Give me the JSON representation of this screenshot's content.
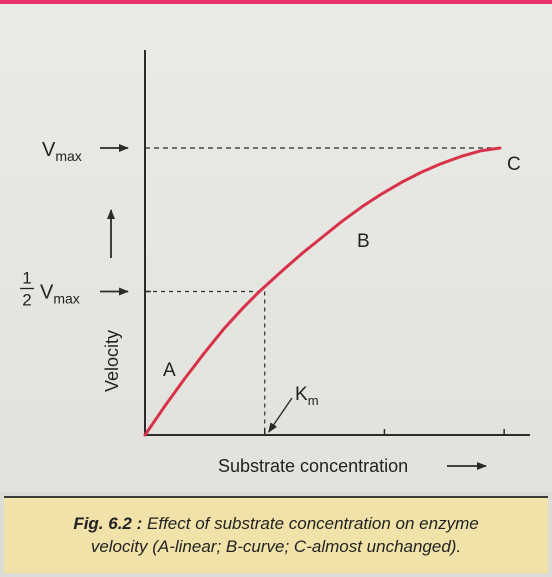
{
  "colors": {
    "curve": "#d8324a",
    "axis": "#2b2b2b",
    "caption_bg": "#f0e2a8",
    "accent_rule": "#e8306a"
  },
  "chart_data": {
    "type": "line",
    "title": "",
    "xlabel": "Substrate concentration",
    "ylabel": "Velocity",
    "y_markers": [
      {
        "label_main": "V",
        "label_sub": "max",
        "value": 1.0
      },
      {
        "label_frac_num": "1",
        "label_frac_den": "2",
        "label_main": "V",
        "label_sub": "max",
        "value": 0.5
      }
    ],
    "km_label": {
      "main": "K",
      "sub": "m"
    },
    "km_x": 1.16,
    "xlim": [
      0,
      3.6
    ],
    "ylim": [
      0,
      1.2
    ],
    "x_ticks": [
      1.16,
      2.32,
      3.48
    ],
    "y_ticks": [
      0.5
    ],
    "series": [
      {
        "values_x": [
          0,
          0.2,
          0.4,
          0.6,
          0.8,
          1.0,
          1.16,
          1.4,
          1.6,
          1.8,
          2.0,
          2.2,
          2.4,
          2.6,
          2.8,
          3.0,
          3.2,
          3.4,
          3.6
        ],
        "values_y": [
          0,
          0.1,
          0.195,
          0.285,
          0.37,
          0.445,
          0.5,
          0.575,
          0.635,
          0.69,
          0.745,
          0.795,
          0.84,
          0.88,
          0.915,
          0.945,
          0.97,
          0.99,
          1.0
        ]
      }
    ],
    "region_labels": [
      {
        "text": "A",
        "x": 0.18,
        "y": 0.2
      },
      {
        "text": "B",
        "x": 1.95,
        "y": 0.62
      },
      {
        "text": "C",
        "x": 3.7,
        "y": 0.94
      }
    ]
  },
  "caption": {
    "fig_label": "Fig. 6.2 :",
    "line1": " Effect of substrate concentration on enzyme",
    "line2": "velocity (A-linear; B-curve; C-almost unchanged)."
  }
}
